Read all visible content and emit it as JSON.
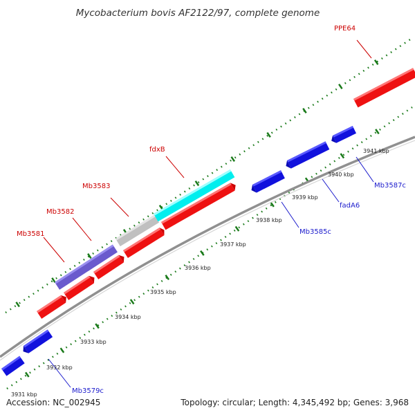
{
  "title": "Mycobacterium bovis AF2122/97, complete genome",
  "footer": {
    "accession": "Accession: NC_002945",
    "summary": "Topology: circular; Length: 4,345,492 bp; Genes: 3,968"
  },
  "colors": {
    "forward_gene": "#ee1111",
    "reverse_gene": "#1111dd",
    "forward_label": "#cc0000",
    "reverse_label": "#1a1acc",
    "backbone": "#909090",
    "tick": "#1a7a1a",
    "fdxB": "#00eeee",
    "Mb3583": "#c0c0c0",
    "Mb3581": "#6a5acd"
  },
  "kbp_labels": [
    "3931 kbp",
    "3932 kbp",
    "3933 kbp",
    "3934 kbp",
    "3935 kbp",
    "3936 kbp",
    "3937 kbp",
    "3938 kbp",
    "3939 kbp",
    "3940 kbp",
    "3941 kbp"
  ],
  "gene_labels": {
    "PPE64": "PPE64",
    "fdxB": "fdxB",
    "Mb3583": "Mb3583",
    "Mb3582": "Mb3582",
    "Mb3581": "Mb3581",
    "Mb3587c": "Mb3587c",
    "fadA6": "fadA6",
    "Mb3585c": "Mb3585c",
    "Mb3579c": "Mb3579c"
  }
}
